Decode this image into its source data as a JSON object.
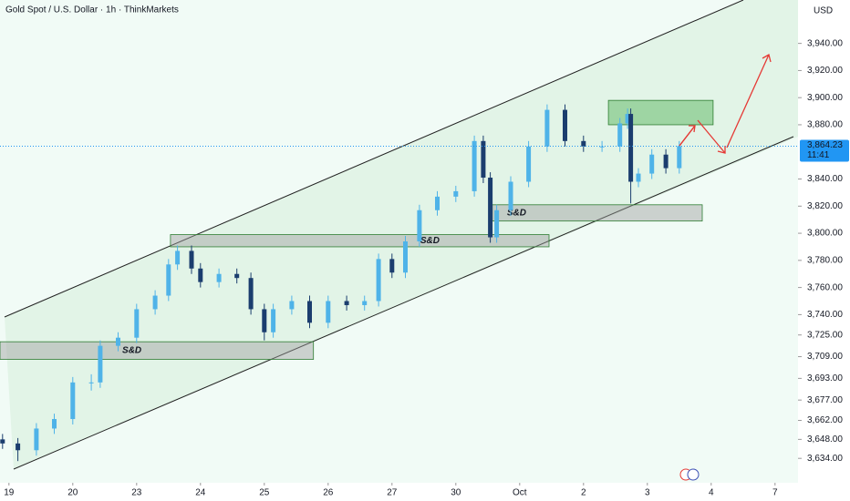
{
  "chart_data": {
    "type": "candlestick",
    "title": "Gold Spot / U.S. Dollar · 1h · ThinkMarkets",
    "currency": "USD",
    "up_color": "#4fb3e8",
    "down_color": "#1b3d6e",
    "xlim": [
      -0.14,
      12.36
    ],
    "xticks": [
      {
        "value": 0,
        "label": "19"
      },
      {
        "value": 1,
        "label": "20"
      },
      {
        "value": 2,
        "label": "23"
      },
      {
        "value": 3,
        "label": "24"
      },
      {
        "value": 4,
        "label": "25"
      },
      {
        "value": 5,
        "label": "26"
      },
      {
        "value": 6,
        "label": "27"
      },
      {
        "value": 7,
        "label": "30"
      },
      {
        "value": 8,
        "label": "Oct"
      },
      {
        "value": 9,
        "label": "2"
      },
      {
        "value": 10,
        "label": "3"
      },
      {
        "value": 11,
        "label": "4"
      },
      {
        "value": 12,
        "label": "7"
      }
    ],
    "ylim": [
      3616,
      3972
    ],
    "yticks": [
      {
        "value": 3940,
        "label": "3,940.00"
      },
      {
        "value": 3920,
        "label": "3,920.00"
      },
      {
        "value": 3900,
        "label": "3,900.00"
      },
      {
        "value": 3880,
        "label": "3,880.00"
      },
      {
        "value": 3840,
        "label": "3,840.00"
      },
      {
        "value": 3820,
        "label": "3,820.00"
      },
      {
        "value": 3800,
        "label": "3,800.00"
      },
      {
        "value": 3780,
        "label": "3,780.00"
      },
      {
        "value": 3760,
        "label": "3,760.00"
      },
      {
        "value": 3740,
        "label": "3,740.00"
      },
      {
        "value": 3725,
        "label": "3,725.00"
      },
      {
        "value": 3709,
        "label": "3,709.00"
      },
      {
        "value": 3693,
        "label": "3,693.00"
      },
      {
        "value": 3677,
        "label": "3,677.00"
      },
      {
        "value": 3662,
        "label": "3,662.00"
      },
      {
        "value": 3648,
        "label": "3,648.00"
      },
      {
        "value": 3634,
        "label": "3,634.00"
      }
    ],
    "x": [
      -0.1,
      0.14,
      0.43,
      0.71,
      1.0,
      1.29,
      1.43,
      1.71,
      2.0,
      2.29,
      2.5,
      2.64,
      2.86,
      3.0,
      3.29,
      3.57,
      3.79,
      4.0,
      4.14,
      4.43,
      4.71,
      5.0,
      5.29,
      5.57,
      5.79,
      6.0,
      6.21,
      6.43,
      6.71,
      7.0,
      7.29,
      7.43,
      7.54,
      7.64,
      7.86,
      8.14,
      8.43,
      8.71,
      9.0,
      9.29,
      9.57,
      9.69,
      9.74,
      9.86,
      10.07,
      10.29,
      10.5
    ],
    "open": [
      3648,
      3645,
      3640,
      3656,
      3663,
      3690,
      3690,
      3717,
      3723,
      3744,
      3754,
      3777,
      3787,
      3774,
      3764,
      3770,
      3767,
      3744,
      3727,
      3744,
      3750,
      3734,
      3750,
      3747,
      3750,
      3781,
      3771,
      3794,
      3817,
      3827,
      3831,
      3868,
      3841,
      3797,
      3817,
      3838,
      3864,
      3891,
      3868,
      3864,
      3864,
      3881,
      3888,
      3838,
      3844,
      3858,
      3848
    ],
    "high": [
      3652,
      3649,
      3660,
      3667,
      3694,
      3696,
      3721,
      3727,
      3748,
      3758,
      3781,
      3791,
      3791,
      3778,
      3774,
      3774,
      3771,
      3748,
      3748,
      3754,
      3754,
      3754,
      3754,
      3754,
      3785,
      3785,
      3798,
      3821,
      3831,
      3835,
      3872,
      3872,
      3845,
      3821,
      3842,
      3868,
      3895,
      3895,
      3872,
      3868,
      3885,
      3892,
      3892,
      3848,
      3862,
      3862,
      3868
    ],
    "low": [
      3641,
      3632,
      3636,
      3652,
      3659,
      3684,
      3686,
      3713,
      3719,
      3740,
      3750,
      3773,
      3770,
      3760,
      3760,
      3763,
      3740,
      3721,
      3723,
      3740,
      3730,
      3730,
      3743,
      3743,
      3746,
      3767,
      3767,
      3790,
      3813,
      3823,
      3827,
      3837,
      3793,
      3793,
      3813,
      3834,
      3860,
      3864,
      3860,
      3860,
      3860,
      3877,
      3822,
      3834,
      3840,
      3844,
      3844
    ],
    "close": [
      3645,
      3640,
      3656,
      3663,
      3690,
      3690,
      3717,
      3723,
      3744,
      3754,
      3777,
      3787,
      3774,
      3764,
      3770,
      3767,
      3744,
      3727,
      3744,
      3750,
      3734,
      3750,
      3747,
      3750,
      3781,
      3771,
      3794,
      3817,
      3827,
      3831,
      3868,
      3841,
      3797,
      3817,
      3838,
      3864,
      3891,
      3868,
      3864,
      3864,
      3881,
      3888,
      3838,
      3844,
      3858,
      3848,
      3864.23
    ],
    "last_price": {
      "value": 3864.23,
      "label": "3,864.23"
    },
    "countdown": "11:41",
    "zones": [
      {
        "label": "S&D",
        "x0": -0.14,
        "x1": 4.77,
        "low": 3707,
        "high": 3720,
        "color": "#9e9e9e"
      },
      {
        "label": "S&D",
        "x0": 2.53,
        "x1": 8.46,
        "low": 3790,
        "high": 3799,
        "color": "#9e9e9e"
      },
      {
        "label": "S&D",
        "x0": 7.57,
        "x1": 10.86,
        "low": 3809,
        "high": 3821,
        "color": "#9e9e9e"
      },
      {
        "x0": 9.39,
        "x1": 11.03,
        "low": 3880,
        "high": 3898,
        "color": "#4caf50"
      }
    ]
  }
}
